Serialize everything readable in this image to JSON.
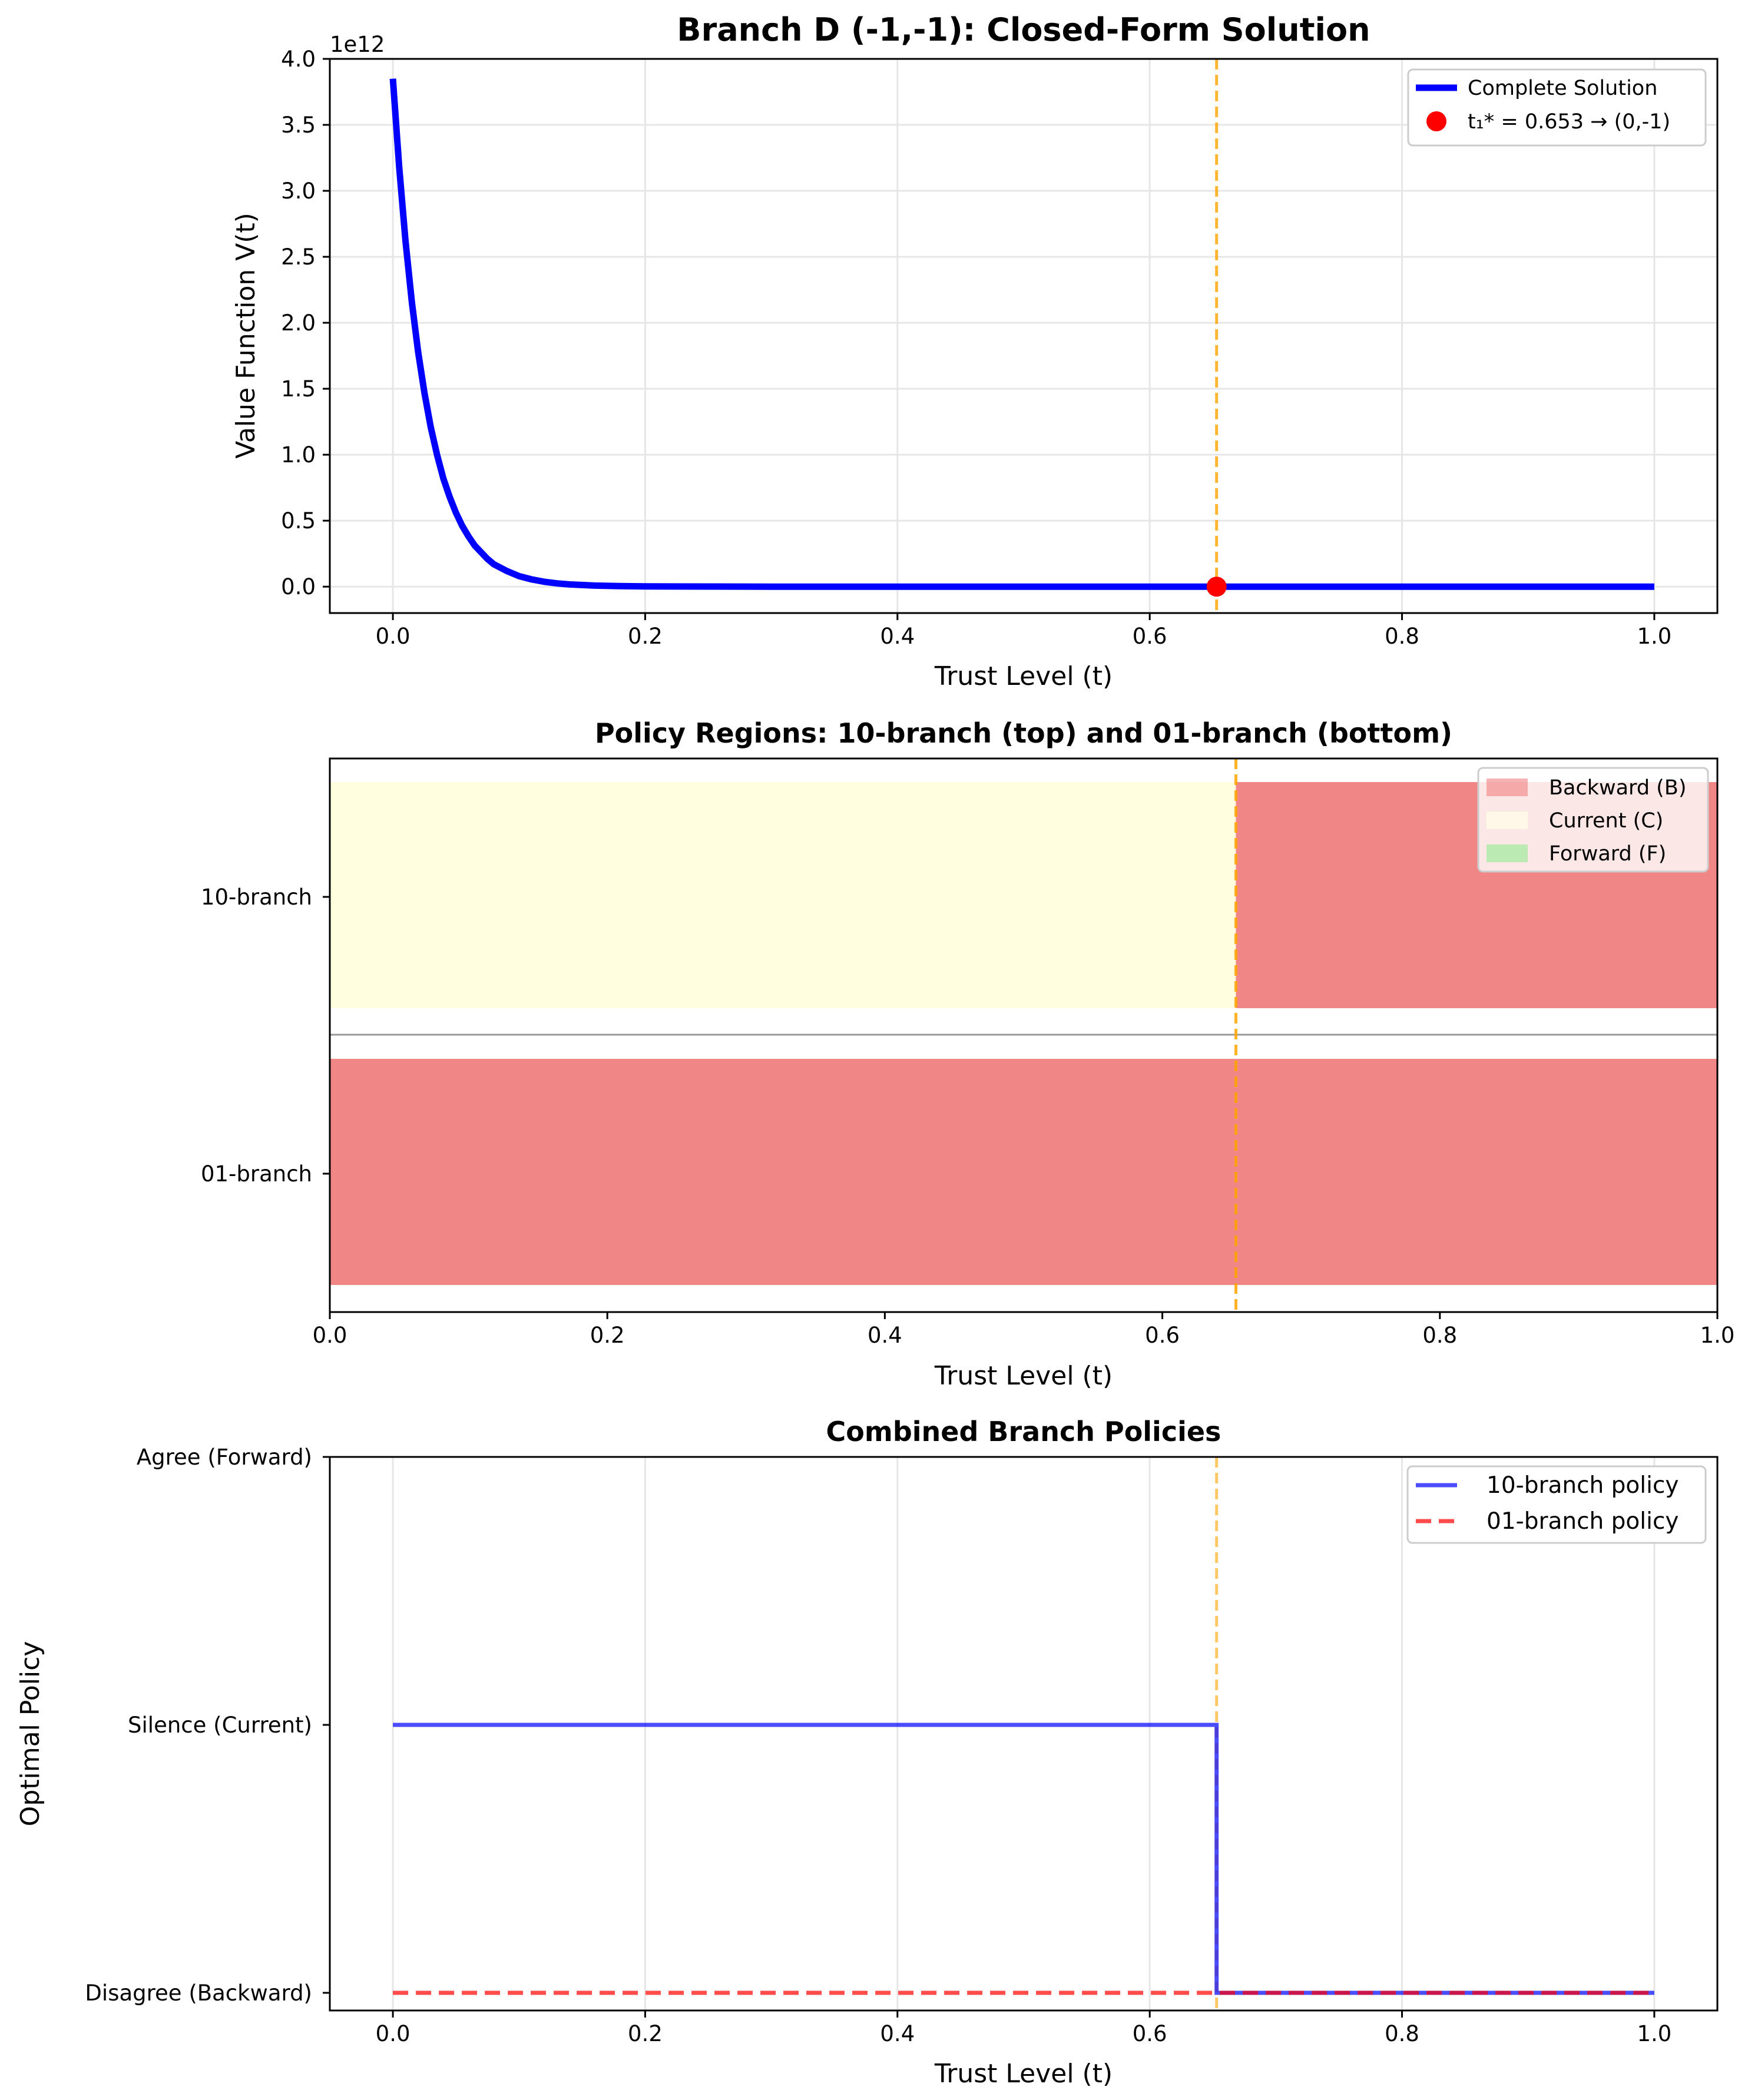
{
  "chart_data": [
    {
      "type": "line",
      "title": "Branch D (-1,-1): Closed-Form Solution",
      "xlabel": "Trust Level (t)",
      "ylabel": "Value Function V(t)",
      "offset_label": "1e12",
      "xlim": [
        -0.05,
        1.05
      ],
      "ylim": [
        -0.2,
        4.0
      ],
      "xticks": [
        0.0,
        0.2,
        0.4,
        0.6,
        0.8,
        1.0
      ],
      "xtick_labels": [
        "0.0",
        "0.2",
        "0.4",
        "0.6",
        "0.8",
        "1.0"
      ],
      "yticks": [
        0.0,
        0.5,
        1.0,
        1.5,
        2.0,
        2.5,
        3.0,
        3.5,
        4.0
      ],
      "ytick_labels": [
        "0.0",
        "0.5",
        "1.0",
        "1.5",
        "2.0",
        "2.5",
        "3.0",
        "3.5",
        "4.0"
      ],
      "grid": true,
      "legend_position": "upper right",
      "series": [
        {
          "name": "Complete Solution",
          "color": "#0000ff",
          "x": [
            0.0,
            0.005,
            0.01,
            0.015,
            0.02,
            0.025,
            0.03,
            0.035,
            0.04,
            0.045,
            0.05,
            0.055,
            0.06,
            0.065,
            0.07,
            0.075,
            0.08,
            0.09,
            0.1,
            0.11,
            0.12,
            0.13,
            0.14,
            0.16,
            0.18,
            0.2,
            0.3,
            0.4,
            0.5,
            0.6,
            0.653,
            0.7,
            0.8,
            0.9,
            1.0
          ],
          "y": [
            3.85,
            3.18,
            2.62,
            2.16,
            1.78,
            1.47,
            1.21,
            1.0,
            0.82,
            0.68,
            0.56,
            0.46,
            0.38,
            0.31,
            0.26,
            0.21,
            0.17,
            0.12,
            0.08,
            0.055,
            0.037,
            0.025,
            0.017,
            0.008,
            0.004,
            0.002,
            0.0,
            0.0,
            0.0,
            0.0,
            0.0,
            0.0,
            0.0,
            0.0,
            0.0
          ]
        }
      ],
      "marker": {
        "name": "t₁* = 0.653 → (0,-1)",
        "x": 0.653,
        "y": 0.0,
        "color": "#ff0000"
      },
      "vline": {
        "x": 0.653,
        "color": "#ffa500"
      }
    },
    {
      "type": "bar",
      "title": "Policy Regions: 10-branch (top) and 01-branch (bottom)",
      "xlabel": "Trust Level (t)",
      "xlim": [
        0.0,
        1.0
      ],
      "xticks": [
        0.0,
        0.2,
        0.4,
        0.6,
        0.8,
        1.0
      ],
      "xtick_labels": [
        "0.0",
        "0.2",
        "0.4",
        "0.6",
        "0.8",
        "1.0"
      ],
      "ycategories": [
        "10-branch",
        "01-branch"
      ],
      "legend_position": "upper right",
      "legend": [
        {
          "name": "Backward (B)",
          "color": "#f08080"
        },
        {
          "name": "Current (C)",
          "color": "#ffffe0"
        },
        {
          "name": "Forward (F)",
          "color": "#90ee90"
        }
      ],
      "regions": {
        "10-branch": [
          {
            "from": 0.0,
            "to": 0.653,
            "policy": "Current (C)"
          },
          {
            "from": 0.653,
            "to": 1.0,
            "policy": "Backward (B)"
          }
        ],
        "01-branch": [
          {
            "from": 0.0,
            "to": 1.0,
            "policy": "Backward (B)"
          }
        ]
      },
      "vline": {
        "x": 0.653,
        "color": "#ffa500"
      }
    },
    {
      "type": "line",
      "title": "Combined Branch Policies",
      "xlabel": "Trust Level (t)",
      "ylabel": "Optimal Policy",
      "xlim": [
        -0.05,
        1.05
      ],
      "xticks": [
        0.0,
        0.2,
        0.4,
        0.6,
        0.8,
        1.0
      ],
      "xtick_labels": [
        "0.0",
        "0.2",
        "0.4",
        "0.6",
        "0.8",
        "1.0"
      ],
      "ycategories": [
        "Disagree (Backward)",
        "Silence (Current)",
        "Agree (Forward)"
      ],
      "grid": true,
      "legend_position": "upper right",
      "series": [
        {
          "name": "10-branch policy",
          "color": "#0000ff",
          "style": "solid",
          "x": [
            0.0,
            0.653,
            0.653,
            1.0
          ],
          "y": [
            1,
            1,
            0,
            0
          ]
        },
        {
          "name": "01-branch policy",
          "color": "#ff0000",
          "style": "dashed",
          "x": [
            0.0,
            1.0
          ],
          "y": [
            0,
            0
          ]
        }
      ],
      "vline": {
        "x": 0.653,
        "color": "#ffa500"
      }
    }
  ]
}
